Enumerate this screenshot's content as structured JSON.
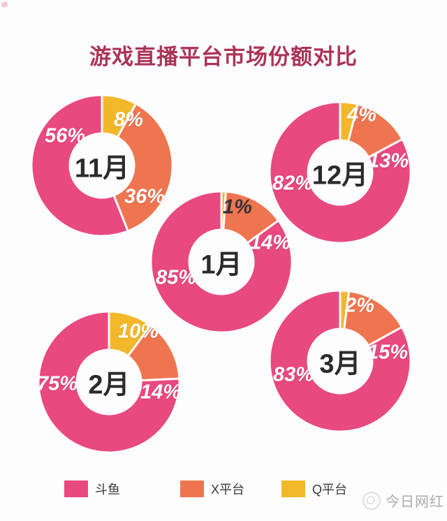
{
  "chart_data": {
    "type": "pie",
    "variant": "donut-small-multiples",
    "title": "游戏直播平台市场份额对比",
    "title_color": "#AC3457",
    "legend_position": "bottom",
    "legend": [
      "斗鱼",
      "X平台",
      "Q平台"
    ],
    "series_colors": {
      "斗鱼": "#E8497E",
      "X平台": "#EF7550",
      "Q平台": "#F3B72A"
    },
    "slice_order_clockwise_from_top": [
      "Q平台",
      "X平台",
      "斗鱼"
    ],
    "charts": [
      {
        "month": "11月",
        "values": {
          "斗鱼": 56,
          "X平台": 36,
          "Q平台": 8
        },
        "labels": {
          "斗鱼": "56%",
          "X平台": "36%",
          "Q平台": "8%"
        }
      },
      {
        "month": "12月",
        "values": {
          "斗鱼": 82,
          "X平台": 13,
          "Q平台": 4
        },
        "labels": {
          "斗鱼": "82%",
          "X平台": "13%",
          "Q平台": "4%"
        }
      },
      {
        "month": "1月",
        "values": {
          "斗鱼": 85,
          "X平台": 14,
          "Q平台": 1
        },
        "labels": {
          "斗鱼": "85%",
          "X平台": "14%",
          "Q平台": "1%"
        }
      },
      {
        "month": "2月",
        "values": {
          "斗鱼": 75,
          "X平台": 14,
          "Q平台": 10
        },
        "labels": {
          "斗鱼": "75%",
          "X平台": "14%",
          "Q平台": "10%"
        }
      },
      {
        "month": "3月",
        "values": {
          "斗鱼": 83,
          "X平台": 15,
          "Q平台": 2
        },
        "labels": {
          "斗鱼": "83%",
          "X平台": "15%",
          "Q平台": "2%"
        }
      }
    ]
  },
  "legend_items": [
    {
      "label": "斗鱼",
      "color": "#E8497E"
    },
    {
      "label": "X平台",
      "color": "#EF7550"
    },
    {
      "label": "Q平台",
      "color": "#F3B72A"
    }
  ],
  "watermark": {
    "brand": "今日网红"
  }
}
